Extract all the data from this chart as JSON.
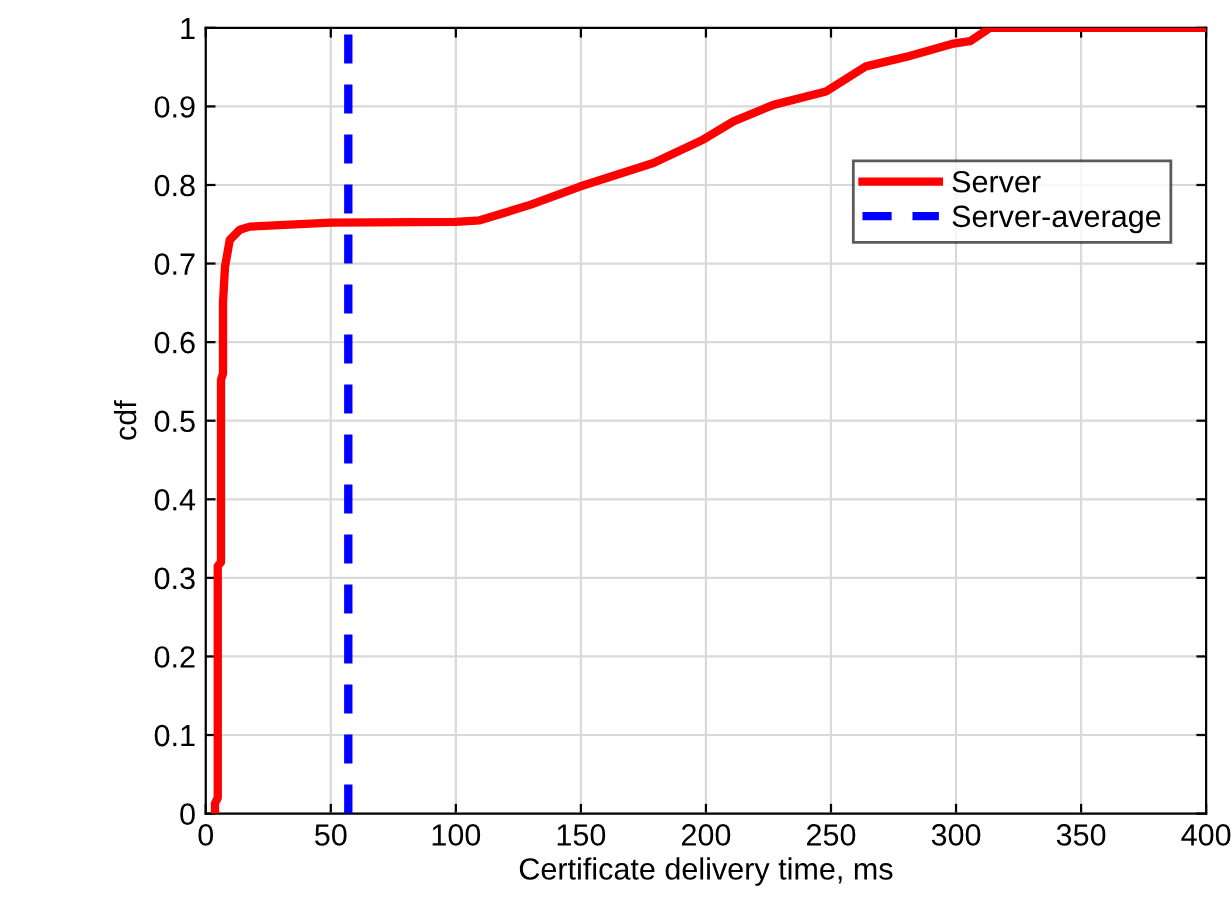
{
  "chart_data": {
    "type": "line",
    "xlabel": "Certificate delivery time, ms",
    "ylabel": "cdf",
    "xlim": [
      0,
      400
    ],
    "xticks": [
      0,
      50,
      100,
      150,
      200,
      250,
      300,
      350,
      400
    ],
    "ylim": [
      0,
      1
    ],
    "yticks": [
      0,
      0.1,
      0.2,
      0.3,
      0.4,
      0.5,
      0.6,
      0.7,
      0.8,
      0.9,
      1
    ],
    "grid": true,
    "legend": "top right",
    "marker": "none",
    "series": [
      {
        "name": "Server",
        "color": "#ff0000",
        "x": [
          3.7,
          3.7,
          4.8,
          4.8,
          6.1,
          6.1,
          6.9,
          6.9,
          7.7,
          9.6,
          13.6,
          17.6,
          50,
          100,
          109.6,
          130,
          149.6,
          179,
          199,
          211,
          227,
          248,
          264,
          280,
          299,
          305.6,
          313.6,
          400
        ],
        "values": [
          0,
          0.013,
          0.02,
          0.315,
          0.32,
          0.552,
          0.56,
          0.65,
          0.696,
          0.73,
          0.743,
          0.747,
          0.752,
          0.753,
          0.755,
          0.775,
          0.798,
          0.828,
          0.858,
          0.881,
          0.902,
          0.919,
          0.951,
          0.963,
          0.98,
          0.983,
          1,
          1
        ],
        "line_style": "solid"
      },
      {
        "name": "Server-average",
        "color": "#0000ff",
        "x": [
          57,
          57
        ],
        "values": [
          0,
          1
        ],
        "line_style": "dashed"
      }
    ]
  }
}
